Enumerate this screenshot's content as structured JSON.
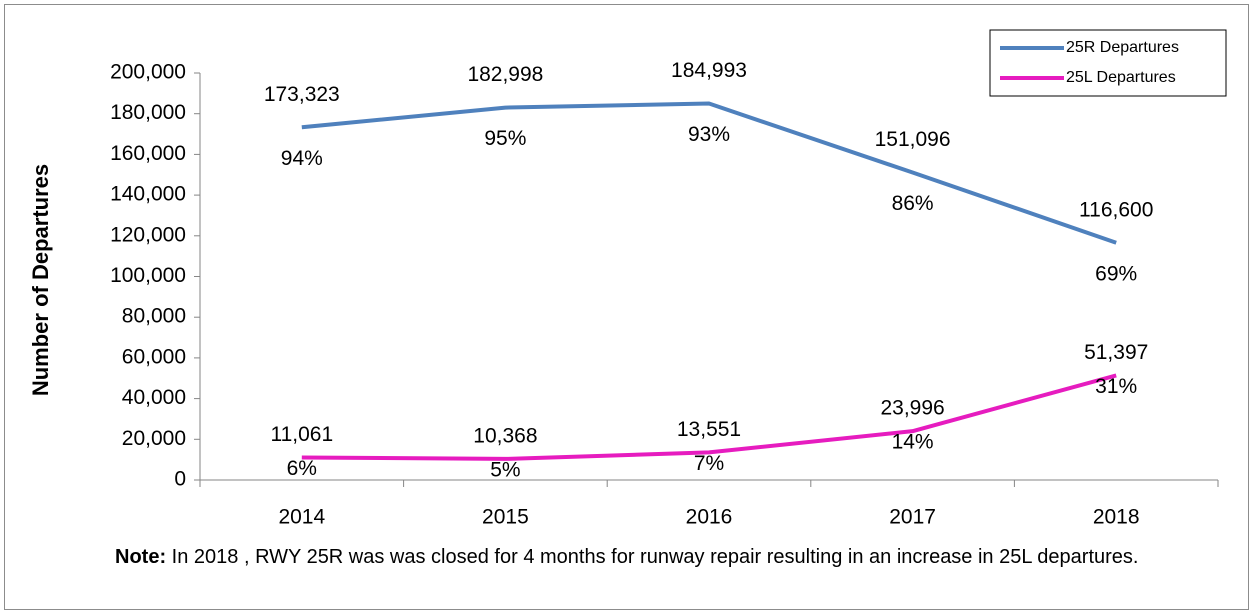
{
  "chart_data": {
    "type": "line",
    "y_label": "Number of Departures",
    "categories": [
      "2014",
      "2015",
      "2016",
      "2017",
      "2018"
    ],
    "series": [
      {
        "name": "25R Departures",
        "color": "#4f81bd",
        "values": [
          173323,
          182998,
          184993,
          151096,
          116600
        ],
        "value_labels": [
          "173,323",
          "182,998",
          "184,993",
          "151,096",
          "116,600"
        ],
        "percent_labels": [
          "94%",
          "95%",
          "93%",
          "86%",
          "69%"
        ]
      },
      {
        "name": "25L Departures",
        "color": "#e61cbf",
        "values": [
          11061,
          10368,
          13551,
          23996,
          51397
        ],
        "value_labels": [
          "11,061",
          "10,368",
          "13,551",
          "23,996",
          "51,397"
        ],
        "percent_labels": [
          "6%",
          "5%",
          "7%",
          "14%",
          "31%"
        ]
      }
    ],
    "ylim": [
      0,
      200000
    ],
    "yticks": [
      0,
      {
        "value": 20000,
        "label": "20,000"
      },
      {
        "value": 40000,
        "label": "40,000"
      },
      {
        "value": 60000,
        "label": "60,000"
      },
      {
        "value": 80000,
        "label": "80,000"
      },
      {
        "value": 100000,
        "label": "100,000"
      },
      {
        "value": 120000,
        "label": "120,000"
      },
      {
        "value": 140000,
        "label": "140,000"
      },
      {
        "value": 160000,
        "label": "160,000"
      },
      {
        "value": 180000,
        "label": "180,000"
      },
      {
        "value": 200000,
        "label": "200,000"
      }
    ],
    "legend": "upper right",
    "note": {
      "label": "Note:",
      "text": "In 2018 , RWY 25R was was closed for 4 months for runway repair resulting in an increase in 25L departures."
    }
  }
}
